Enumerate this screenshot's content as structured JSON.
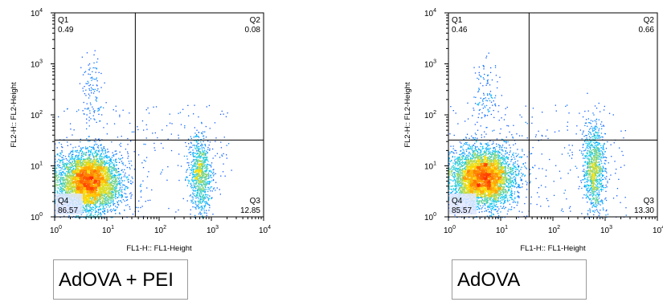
{
  "chart_data": [
    {
      "type": "scatter",
      "plot_style": "flow cytometry density dot plot (pseudocolor)",
      "xlabel": "FL1-H:: FL1-Height",
      "ylabel": "FL2-H:: FL2-Height",
      "x_scale": "log",
      "y_scale": "log",
      "xlim": [
        1,
        10000
      ],
      "ylim": [
        1,
        10000
      ],
      "x_ticks": [
        {
          "base": "10",
          "exp": "0"
        },
        {
          "base": "10",
          "exp": "1"
        },
        {
          "base": "10",
          "exp": "2"
        },
        {
          "base": "10",
          "exp": "3"
        },
        {
          "base": "10",
          "exp": "4"
        }
      ],
      "y_ticks": [
        {
          "base": "10",
          "exp": "0"
        },
        {
          "base": "10",
          "exp": "1"
        },
        {
          "base": "10",
          "exp": "2"
        },
        {
          "base": "10",
          "exp": "3"
        },
        {
          "base": "10",
          "exp": "4"
        }
      ],
      "gate": {
        "x": 35,
        "y": 32
      },
      "quadrants": [
        {
          "name": "Q1",
          "value": "0.49"
        },
        {
          "name": "Q2",
          "value": "0.08"
        },
        {
          "name": "Q3",
          "value": "12.85"
        },
        {
          "name": "Q4",
          "value": "86.57"
        }
      ],
      "populations": [
        {
          "x_center": 4.5,
          "y_center": 5,
          "x_spread": 0.3,
          "y_spread": 0.28,
          "share": 0.8
        },
        {
          "x_center": 600,
          "y_center": 7,
          "x_spread": 0.1,
          "y_spread": 0.35,
          "share": 0.15
        },
        {
          "x_center": 5,
          "y_center": 250,
          "x_spread": 0.12,
          "y_spread": 0.4,
          "share": 0.02
        }
      ],
      "caption": "AdOVA + PEI"
    },
    {
      "type": "scatter",
      "plot_style": "flow cytometry density dot plot (pseudocolor)",
      "xlabel": "FL1-H:: FL1-Height",
      "ylabel": "FL2-H:: FL2-Height",
      "x_scale": "log",
      "y_scale": "log",
      "xlim": [
        1,
        10000
      ],
      "ylim": [
        1,
        10000
      ],
      "x_ticks": [
        {
          "base": "10",
          "exp": "0"
        },
        {
          "base": "10",
          "exp": "1"
        },
        {
          "base": "10",
          "exp": "2"
        },
        {
          "base": "10",
          "exp": "3"
        },
        {
          "base": "10",
          "exp": "4"
        }
      ],
      "y_ticks": [
        {
          "base": "10",
          "exp": "0"
        },
        {
          "base": "10",
          "exp": "1"
        },
        {
          "base": "10",
          "exp": "2"
        },
        {
          "base": "10",
          "exp": "3"
        },
        {
          "base": "10",
          "exp": "4"
        }
      ],
      "gate": {
        "x": 35,
        "y": 32
      },
      "quadrants": [
        {
          "name": "Q1",
          "value": "0.46"
        },
        {
          "name": "Q2",
          "value": "0.66"
        },
        {
          "name": "Q3",
          "value": "13.30"
        },
        {
          "name": "Q4",
          "value": "85.57"
        }
      ],
      "populations": [
        {
          "x_center": 4.5,
          "y_center": 6,
          "x_spread": 0.3,
          "y_spread": 0.28,
          "share": 0.78
        },
        {
          "x_center": 600,
          "y_center": 9,
          "x_spread": 0.1,
          "y_spread": 0.4,
          "share": 0.17
        },
        {
          "x_center": 5,
          "y_center": 250,
          "x_spread": 0.12,
          "y_spread": 0.4,
          "share": 0.02
        }
      ],
      "caption": "AdOVA"
    }
  ],
  "colors": {
    "axis": "#000000",
    "gate": "#000000",
    "density_low": "#1a1aff",
    "density_mid": "#00c8ff",
    "density_high": "#ffe000",
    "density_peak": "#ff2a00",
    "caption_border": "#9a9a9a"
  }
}
